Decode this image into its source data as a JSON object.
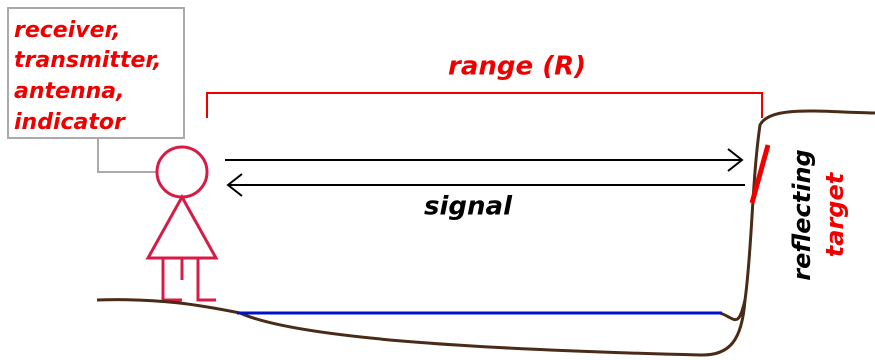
{
  "label_box": {
    "lines": [
      "receiver,",
      "transmitter,",
      "antenna,",
      "indicator"
    ]
  },
  "range_label": "range (R)",
  "signal_label": "signal",
  "target_label": {
    "line1": "reflecting",
    "line2": "target"
  }
}
